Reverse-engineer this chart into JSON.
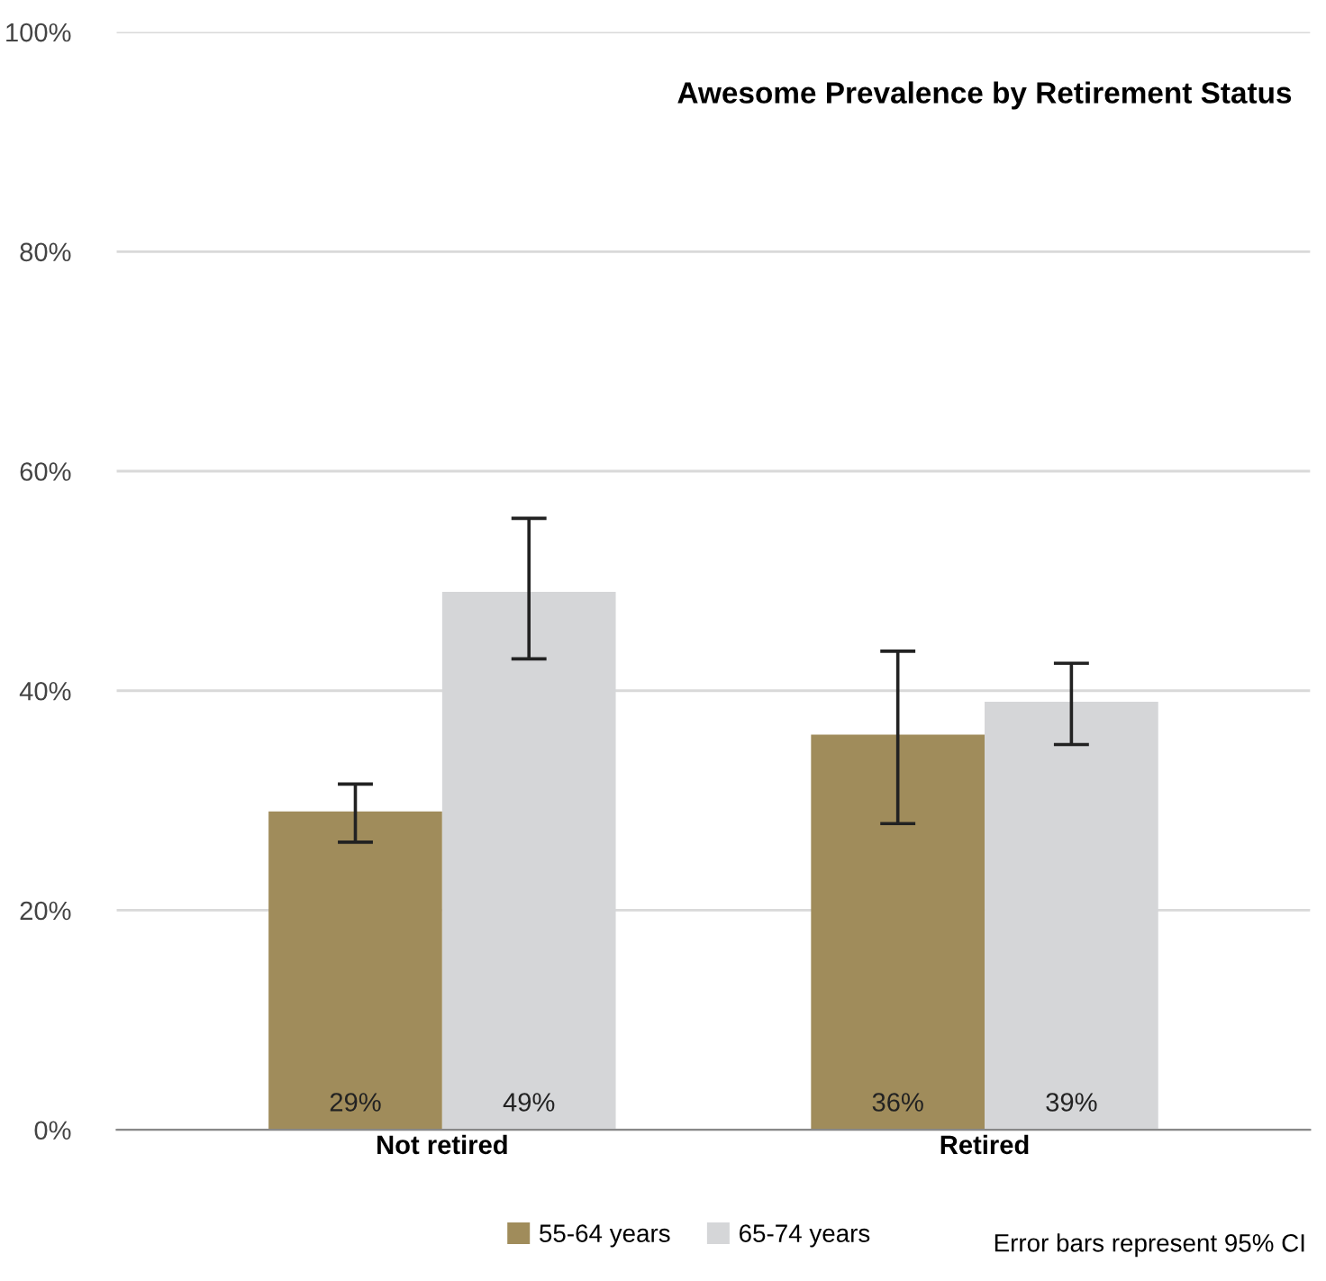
{
  "chart_data": {
    "type": "bar",
    "title": "Awesome Prevalence by Retirement Status",
    "categories": [
      "Not retired",
      "Retired"
    ],
    "series": [
      {
        "name": "55-64 years",
        "color": "#a08c5b",
        "values": [
          29,
          36
        ],
        "errors": [
          [
            26.2,
            31.5
          ],
          [
            27.9,
            43.6
          ]
        ],
        "value_labels": [
          "29%",
          "36%"
        ]
      },
      {
        "name": "65-74 years",
        "color": "#d5d6d8",
        "values": [
          49,
          39
        ],
        "errors": [
          [
            42.9,
            55.7
          ],
          [
            35.1,
            42.5
          ]
        ],
        "value_labels": [
          "49%",
          "39%"
        ]
      }
    ],
    "ylim": [
      0,
      100
    ],
    "yticks": [
      {
        "value": 0,
        "label": "0%"
      },
      {
        "value": 20,
        "label": "20%"
      },
      {
        "value": 40,
        "label": "40%"
      },
      {
        "value": 60,
        "label": "60%"
      },
      {
        "value": 80,
        "label": "80%"
      },
      {
        "value": 100,
        "label": "100%"
      }
    ],
    "grid": "y",
    "legend": "bottom",
    "annotations": [
      "Error bars represent 95% CI"
    ]
  }
}
